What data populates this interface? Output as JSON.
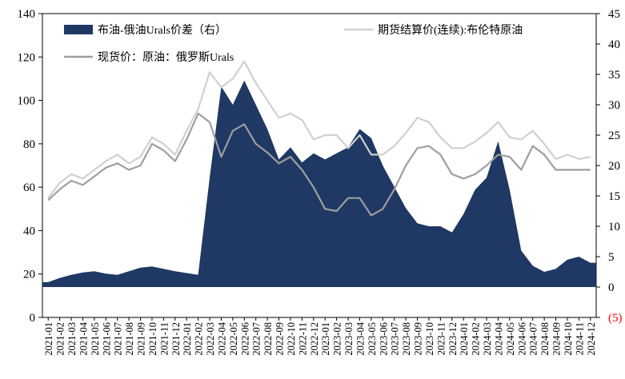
{
  "chart_data": {
    "type": "area",
    "left_axis": {
      "ticks": [
        "0",
        "20",
        "40",
        "60",
        "80",
        "100",
        "120",
        "140"
      ],
      "ylim": [
        0,
        140
      ]
    },
    "right_axis": {
      "ticks": [
        "(5)",
        "0",
        "5",
        "10",
        "15",
        "20",
        "25",
        "30",
        "35",
        "40",
        "45"
      ],
      "ylim": [
        -5,
        45
      ]
    },
    "x_categories": [
      "2021-01",
      "2021-02",
      "2021-03",
      "2021-04",
      "2021-05",
      "2021-06",
      "2021-07",
      "2021-08",
      "2021-09",
      "2021-10",
      "2021-11",
      "2021-12",
      "2022-01",
      "2022-02",
      "2022-03",
      "2022-04",
      "2022-05",
      "2022-06",
      "2022-07",
      "2022-08",
      "2022-09",
      "2022-10",
      "2022-11",
      "2022-12",
      "2023-01",
      "2023-02",
      "2023-03",
      "2023-04",
      "2023-05",
      "2023-06",
      "2023-07",
      "2023-08",
      "2023-09",
      "2023-10",
      "2023-11",
      "2023-12",
      "2024-01",
      "2024-02",
      "2024-03",
      "2024-04",
      "2024-05",
      "2024-06",
      "2024-07",
      "2024-08",
      "2024-09",
      "2024-10",
      "2024-11",
      "2024-12"
    ],
    "legend": [
      {
        "name": "布油-俄油Urals价差（右）",
        "kind": "area",
        "color": "#1f3864"
      },
      {
        "name": "期货结算价(连续):布伦特原油",
        "kind": "line",
        "color": "#d0d0d0"
      },
      {
        "name": "现货价：原油：俄罗斯Urals",
        "kind": "line",
        "color": "#9e9e9e"
      }
    ],
    "series": [
      {
        "name": "布油-俄油Urals价差（右）",
        "axis": "right",
        "values": [
          0.8,
          1.5,
          2.0,
          2.4,
          2.6,
          2.2,
          2.0,
          2.6,
          3.2,
          3.4,
          3.0,
          2.6,
          2.3,
          2.0,
          18.0,
          33.0,
          30.0,
          34.0,
          30.0,
          26.0,
          21.0,
          23.0,
          20.5,
          22.0,
          21.0,
          22.0,
          23.0,
          26.0,
          24.5,
          20.0,
          16.5,
          13.0,
          10.5,
          10.0,
          10.0,
          9.0,
          12.0,
          16.0,
          18.0,
          24.0,
          16.0,
          6.0,
          3.5,
          2.5,
          3.0,
          4.5,
          5.0,
          4.0
        ]
      },
      {
        "name": "期货结算价(连续):布伦特原油",
        "axis": "left",
        "values": [
          55,
          62,
          66,
          64,
          68,
          72,
          75,
          71,
          74,
          83,
          80,
          75,
          86,
          96,
          113,
          106,
          110,
          118,
          108,
          100,
          92,
          94,
          91,
          82,
          84,
          84,
          78,
          84,
          75,
          75,
          79,
          85,
          92,
          90,
          83,
          78,
          78,
          81,
          85,
          90,
          83,
          82,
          86,
          80,
          73,
          75,
          73,
          74
        ]
      },
      {
        "name": "现货价：原油：俄罗斯Urals",
        "axis": "left",
        "values": [
          54,
          59,
          63,
          61,
          65,
          69,
          71,
          68,
          70,
          80,
          77,
          72,
          82,
          94,
          90,
          74,
          86,
          89,
          80,
          76,
          71,
          74,
          68,
          60,
          50,
          49,
          55,
          55,
          47,
          50,
          59,
          70,
          78,
          79,
          75,
          66,
          64,
          66,
          70,
          75,
          74,
          68,
          79,
          75,
          68,
          68,
          68,
          68
        ]
      }
    ]
  }
}
